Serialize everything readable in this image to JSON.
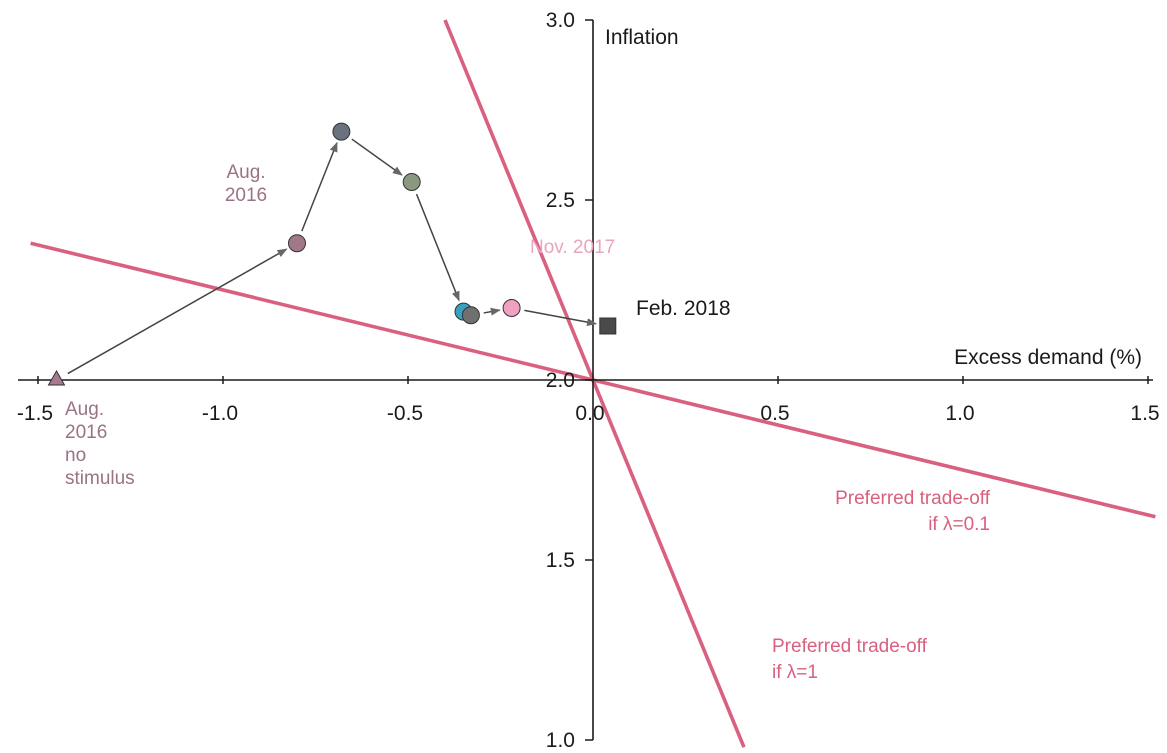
{
  "chart_data": {
    "type": "scatter",
    "x_axis": {
      "label": "Excess demand (%)",
      "range": [
        -1.5,
        1.5
      ],
      "ticks": [
        "-1.5",
        "-1.0",
        "-0.5",
        "0.0",
        "0.5",
        "1.0",
        "1.5"
      ]
    },
    "y_axis": {
      "label": "Inflation",
      "range": [
        1.0,
        3.0
      ],
      "ticks": [
        "1.0",
        "1.5",
        "2.0",
        "2.5",
        "3.0"
      ]
    },
    "grid": false,
    "points": [
      {
        "x": -1.45,
        "y": 2.0,
        "shape": "triangle",
        "color": "#a87a90"
      },
      {
        "x": -0.8,
        "y": 2.38,
        "shape": "circle",
        "color": "#a07888"
      },
      {
        "x": -0.68,
        "y": 2.69,
        "shape": "circle",
        "color": "#6a7280"
      },
      {
        "x": -0.49,
        "y": 2.55,
        "shape": "circle",
        "color": "#8a9880"
      },
      {
        "x": -0.35,
        "y": 2.19,
        "shape": "circle",
        "color": "#3aa0c0"
      },
      {
        "x": -0.33,
        "y": 2.18,
        "shape": "circle",
        "color": "#707070"
      },
      {
        "x": -0.22,
        "y": 2.2,
        "shape": "circle",
        "color": "#f0a0c0"
      },
      {
        "x": 0.04,
        "y": 2.15,
        "shape": "square",
        "color": "#4a4a4a"
      }
    ],
    "lines": [
      {
        "label": "Preferred trade-off\nif λ=0.1",
        "slope": -0.25,
        "intercept": 2.0,
        "color": "#d9607e"
      },
      {
        "label": "Preferred trade-off\nif λ=1",
        "slope": -2.5,
        "intercept": 2.0,
        "color": "#d9607e"
      }
    ],
    "annotations": [
      {
        "text": "Aug.\n2016",
        "color": "#9a7286"
      },
      {
        "text": "Aug.\n2016\nno\nstimulus",
        "color": "#9a7286"
      },
      {
        "text": "Nov. 2017",
        "color": "#eaa5be"
      },
      {
        "text": "Feb. 2018",
        "color": "#1a1a1a"
      },
      {
        "text": "Preferred trade-off\nif λ=0.1",
        "color": "#d9607e"
      },
      {
        "text": "Preferred trade-off\nif λ=1",
        "color": "#d9607e"
      }
    ]
  }
}
